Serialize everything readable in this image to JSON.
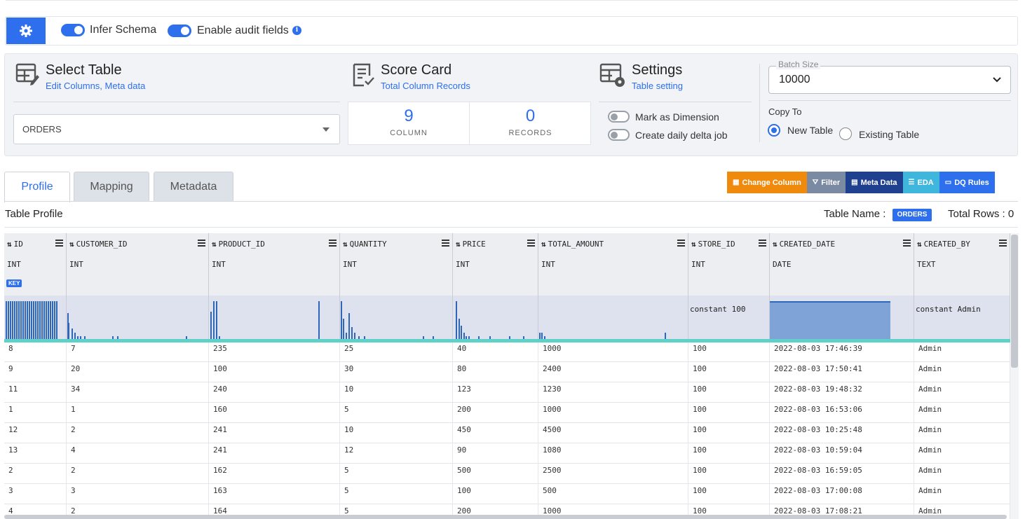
{
  "toolbar": {
    "infer_schema_label": "Infer Schema",
    "audit_fields_label": "Enable audit fields",
    "info_glyph": "i"
  },
  "select_table": {
    "title": "Select Table",
    "subtitle": "Edit Columns, Meta data",
    "selected": "ORDERS"
  },
  "score_card": {
    "title": "Score Card",
    "subtitle": "Total Column Records",
    "column_count": "9",
    "column_label": "COLUMN",
    "record_count": "0",
    "record_label": "RECORDS"
  },
  "settings": {
    "title": "Settings",
    "subtitle": "Table setting",
    "mark_dimension_label": "Mark as Dimension",
    "daily_delta_label": "Create daily delta job"
  },
  "batch": {
    "legend": "Batch Size",
    "value": "10000"
  },
  "copy_to": {
    "label": "Copy To",
    "new_table": "New Table",
    "existing_table": "Existing Table",
    "selected": "New Table"
  },
  "tabs": [
    {
      "label": "Profile",
      "active": true
    },
    {
      "label": "Mapping",
      "active": false
    },
    {
      "label": "Metadata",
      "active": false
    }
  ],
  "actions": [
    {
      "label": "Change Column",
      "color": "#f08a0c",
      "icon": "column-icon"
    },
    {
      "label": "Filter",
      "color": "#7b8aa3",
      "icon": "filter-icon"
    },
    {
      "label": "Meta Data",
      "color": "#1f3f8f",
      "icon": "metadata-icon"
    },
    {
      "label": "EDA",
      "color": "#3fb6dc",
      "icon": "eda-icon"
    },
    {
      "label": "DQ Rules",
      "color": "#2d6fec",
      "icon": "dq-icon"
    }
  ],
  "profile": {
    "title": "Table Profile",
    "table_name_label": "Table Name :",
    "table_name": "ORDERS",
    "total_rows_label": "Total Rows : 0"
  },
  "grid": {
    "sort_glyph": "⇅",
    "key_badge": "KEY",
    "columns": [
      {
        "name": "ID",
        "type": "INT",
        "key": true,
        "histogram": "dense"
      },
      {
        "name": "CUSTOMER_ID",
        "type": "INT",
        "key": false,
        "histogram": "sparse"
      },
      {
        "name": "PRODUCT_ID",
        "type": "INT",
        "key": false,
        "histogram": "sparse"
      },
      {
        "name": "QUANTITY",
        "type": "INT",
        "key": false,
        "histogram": "sparse"
      },
      {
        "name": "PRICE",
        "type": "INT",
        "key": false,
        "histogram": "sparse"
      },
      {
        "name": "TOTAL_AMOUNT",
        "type": "INT",
        "key": false,
        "histogram": "sparse"
      },
      {
        "name": "STORE_ID",
        "type": "INT",
        "key": false,
        "histogram": "constant",
        "constant_text": "constant 100"
      },
      {
        "name": "CREATED_DATE",
        "type": "DATE",
        "key": false,
        "histogram": "block"
      },
      {
        "name": "CREATED_BY",
        "type": "TEXT",
        "key": false,
        "histogram": "constant",
        "constant_text": "constant Admin"
      }
    ],
    "rows": [
      [
        "8",
        "7",
        "235",
        "25",
        "40",
        "1000",
        "100",
        "2022-08-03 17:46:39",
        "Admin"
      ],
      [
        "9",
        "20",
        "100",
        "30",
        "80",
        "2400",
        "100",
        "2022-08-03 17:50:41",
        "Admin"
      ],
      [
        "11",
        "34",
        "240",
        "10",
        "123",
        "1230",
        "100",
        "2022-08-03 19:48:32",
        "Admin"
      ],
      [
        "1",
        "1",
        "160",
        "5",
        "200",
        "1000",
        "100",
        "2022-08-03 16:53:06",
        "Admin"
      ],
      [
        "12",
        "2",
        "241",
        "10",
        "450",
        "4500",
        "100",
        "2022-08-03 10:25:48",
        "Admin"
      ],
      [
        "13",
        "4",
        "241",
        "12",
        "90",
        "1080",
        "100",
        "2022-08-03 10:59:04",
        "Admin"
      ],
      [
        "2",
        "2",
        "162",
        "5",
        "500",
        "2500",
        "100",
        "2022-08-03 16:59:05",
        "Admin"
      ],
      [
        "3",
        "3",
        "163",
        "5",
        "100",
        "500",
        "100",
        "2022-08-03 17:00:08",
        "Admin"
      ],
      [
        "4",
        "2",
        "164",
        "5",
        "200",
        "1000",
        "100",
        "2022-08-03 17:08:21",
        "Admin"
      ]
    ]
  }
}
